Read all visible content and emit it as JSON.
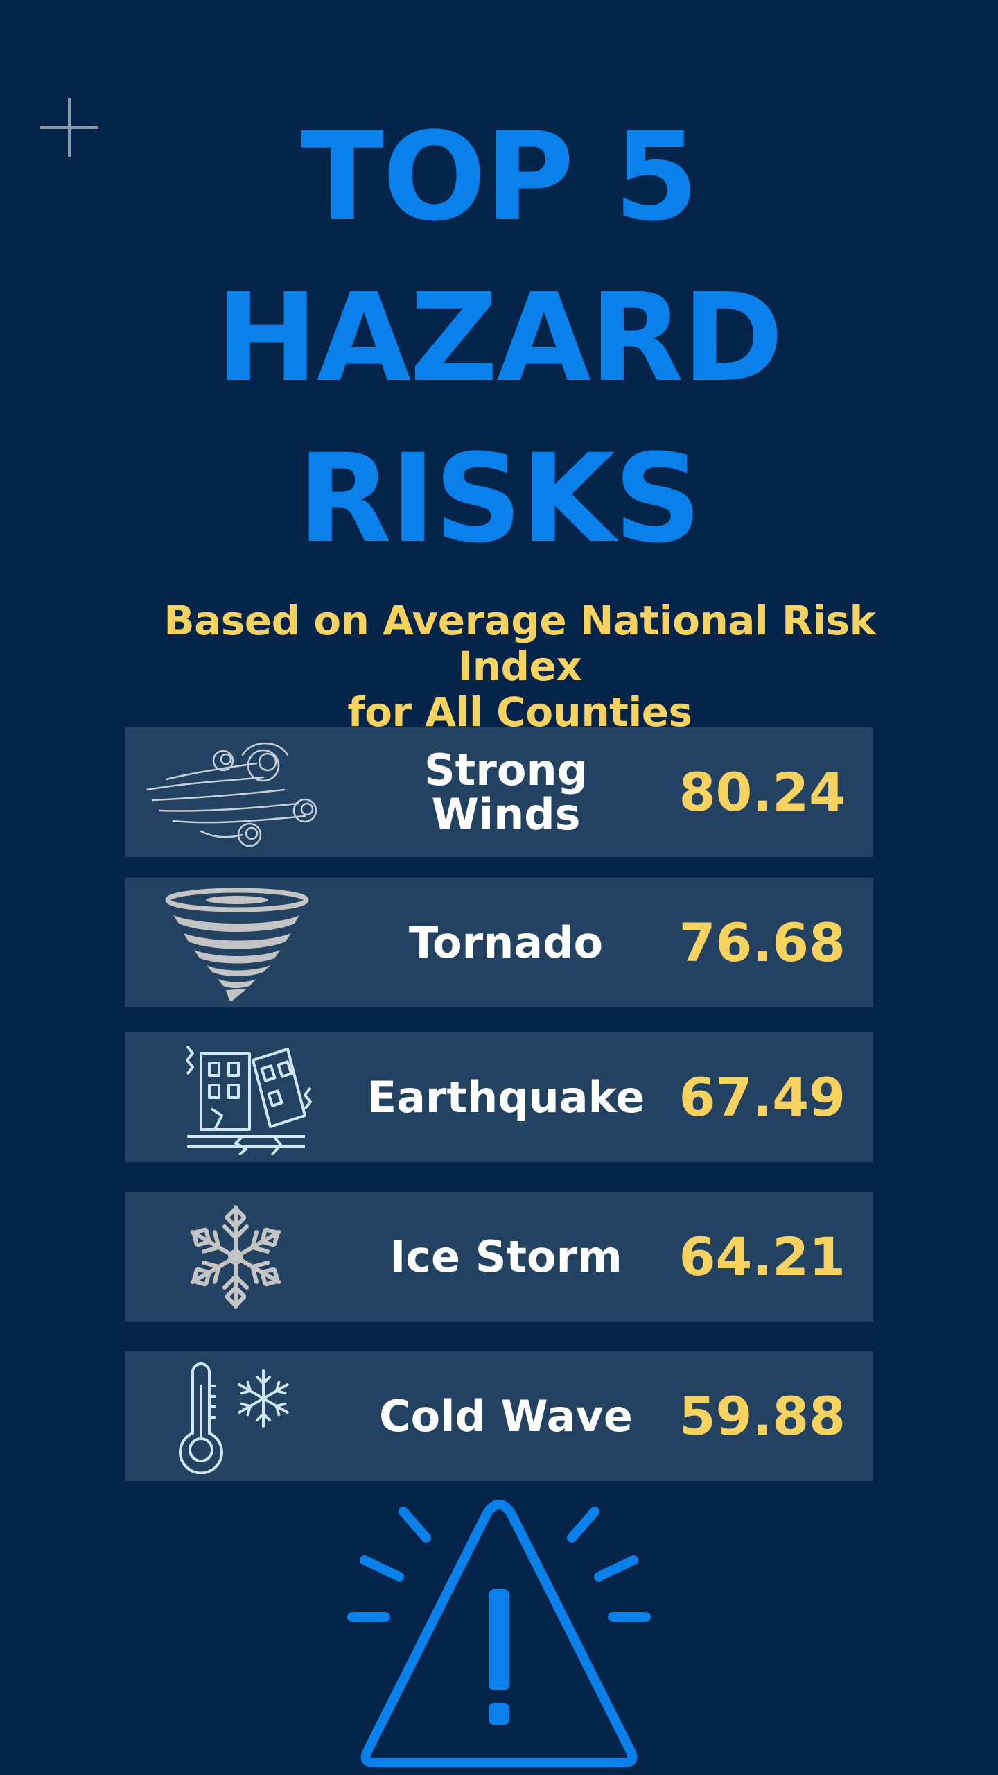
{
  "title": {
    "line1": "TOP 5",
    "line2": "HAZARD",
    "line3": "RISKS"
  },
  "subtitle": {
    "line1": "Based on Average National Risk Index",
    "line2": "for All Counties"
  },
  "hazards": [
    {
      "name": "Strong Winds",
      "value": "80.24",
      "icon": "wind-icon"
    },
    {
      "name": "Tornado",
      "value": "76.68",
      "icon": "tornado-icon"
    },
    {
      "name": "Earthquake",
      "value": "67.49",
      "icon": "earthquake-building-icon"
    },
    {
      "name": "Ice Storm",
      "value": "64.21",
      "icon": "snowflake-icon"
    },
    {
      "name": "Cold Wave",
      "value": "59.88",
      "icon": "thermometer-snowflake-icon"
    }
  ],
  "colors": {
    "background": "#05244a",
    "title": "#0a80ea",
    "accent": "#f7d25f",
    "row": "#234161",
    "text": "#ffffff"
  },
  "decorations": {
    "corner_icon": "plus-icon",
    "bottom_icon": "warning-triangle-icon"
  }
}
